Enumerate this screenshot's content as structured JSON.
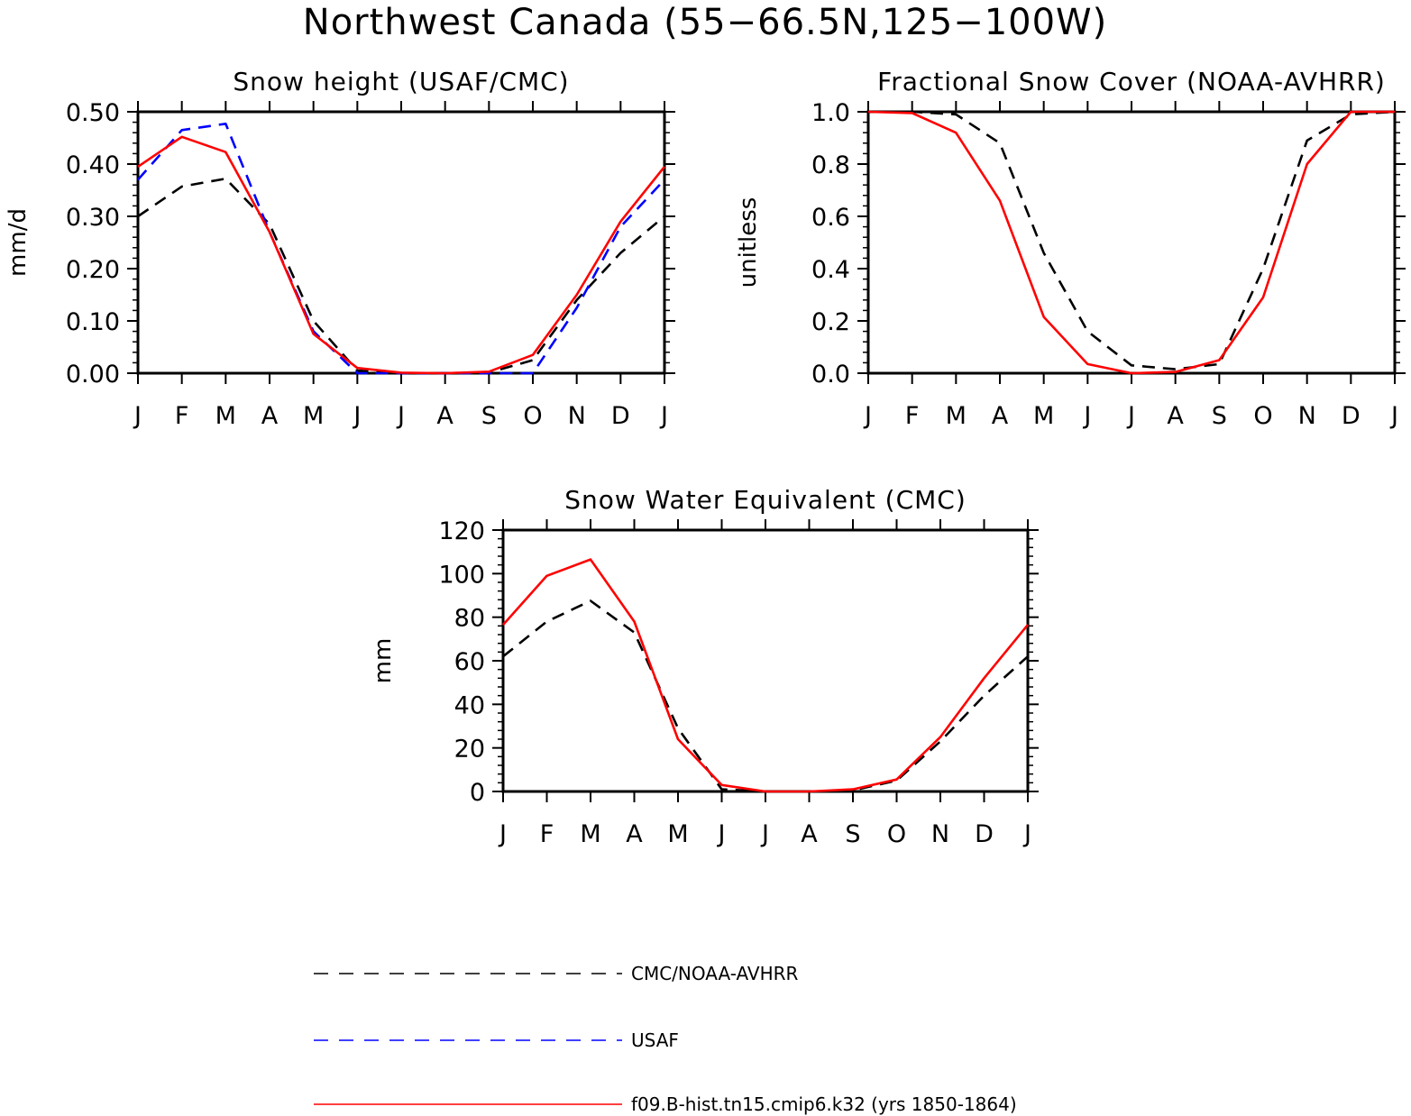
{
  "figure": {
    "title": "Northwest Canada (55−66.5N,125−100W)"
  },
  "legend": [
    {
      "label": "CMC/NOAA-AVHRR",
      "color": "#000000",
      "dash": "dashed"
    },
    {
      "label": "USAF",
      "color": "#0000ff",
      "dash": "dashed"
    },
    {
      "label": "f09.B-hist.tn15.cmip6.k32 (yrs 1850-1864)",
      "color": "#ff0000",
      "dash": "solid"
    }
  ],
  "chart_data": [
    {
      "type": "line",
      "title": "Snow height (USAF/CMC)",
      "xlabel": "",
      "ylabel": "mm/d",
      "x": [
        "J",
        "F",
        "M",
        "A",
        "M",
        "J",
        "J",
        "A",
        "S",
        "O",
        "N",
        "D",
        "J"
      ],
      "ylim": [
        0,
        0.5
      ],
      "yticks": [
        "0.00",
        "0.10",
        "0.20",
        "0.30",
        "0.40",
        "0.50"
      ],
      "series": [
        {
          "name": "CMC/NOAA-AVHRR",
          "color": "#000000",
          "dash": true,
          "values": [
            0.3,
            0.357,
            0.372,
            0.285,
            0.1,
            0.005,
            0.0,
            0.0,
            0.001,
            0.025,
            0.14,
            0.23,
            0.3
          ]
        },
        {
          "name": "USAF",
          "color": "#0000ff",
          "dash": true,
          "values": [
            0.37,
            0.465,
            0.477,
            0.27,
            0.08,
            0.0,
            0.0,
            0.0,
            0.0,
            0.0,
            0.125,
            0.28,
            0.37
          ]
        },
        {
          "name": "f09.B-hist.tn15.cmip6.k32 (yrs 1850-1864)",
          "color": "#ff0000",
          "dash": false,
          "values": [
            0.395,
            0.452,
            0.423,
            0.27,
            0.075,
            0.01,
            0.001,
            0.0,
            0.003,
            0.035,
            0.15,
            0.29,
            0.395
          ]
        }
      ]
    },
    {
      "type": "line",
      "title": "Fractional Snow Cover (NOAA-AVHRR)",
      "xlabel": "",
      "ylabel": "unitless",
      "x": [
        "J",
        "F",
        "M",
        "A",
        "M",
        "J",
        "J",
        "A",
        "S",
        "O",
        "N",
        "D",
        "J"
      ],
      "ylim": [
        0,
        1.0
      ],
      "yticks": [
        "0.0",
        "0.2",
        "0.4",
        "0.6",
        "0.8",
        "1.0"
      ],
      "series": [
        {
          "name": "CMC/NOAA-AVHRR",
          "color": "#000000",
          "dash": true,
          "values": [
            1.0,
            1.0,
            0.99,
            0.88,
            0.46,
            0.16,
            0.03,
            0.015,
            0.035,
            0.4,
            0.89,
            0.99,
            1.0
          ]
        },
        {
          "name": "f09.B-hist.tn15.cmip6.k32 (yrs 1850-1864)",
          "color": "#ff0000",
          "dash": false,
          "values": [
            1.0,
            0.995,
            0.92,
            0.66,
            0.215,
            0.035,
            0.0,
            0.005,
            0.05,
            0.29,
            0.8,
            1.0,
            1.0
          ]
        }
      ]
    },
    {
      "type": "line",
      "title": "Snow Water Equivalent (CMC)",
      "xlabel": "",
      "ylabel": "mm",
      "x": [
        "J",
        "F",
        "M",
        "A",
        "M",
        "J",
        "J",
        "A",
        "S",
        "O",
        "N",
        "D",
        "J"
      ],
      "ylim": [
        0,
        120
      ],
      "yticks": [
        "0",
        "20",
        "40",
        "60",
        "80",
        "100",
        "120"
      ],
      "series": [
        {
          "name": "CMC/NOAA-AVHRR",
          "color": "#000000",
          "dash": true,
          "values": [
            62,
            78,
            87.5,
            73,
            29,
            1,
            0,
            0,
            0.5,
            5,
            23,
            44,
            62
          ]
        },
        {
          "name": "f09.B-hist.tn15.cmip6.k32 (yrs 1850-1864)",
          "color": "#ff0000",
          "dash": false,
          "values": [
            76.5,
            99,
            106.5,
            78,
            24,
            3,
            0,
            0,
            1,
            5.5,
            25,
            52,
            76.5
          ]
        }
      ]
    }
  ]
}
